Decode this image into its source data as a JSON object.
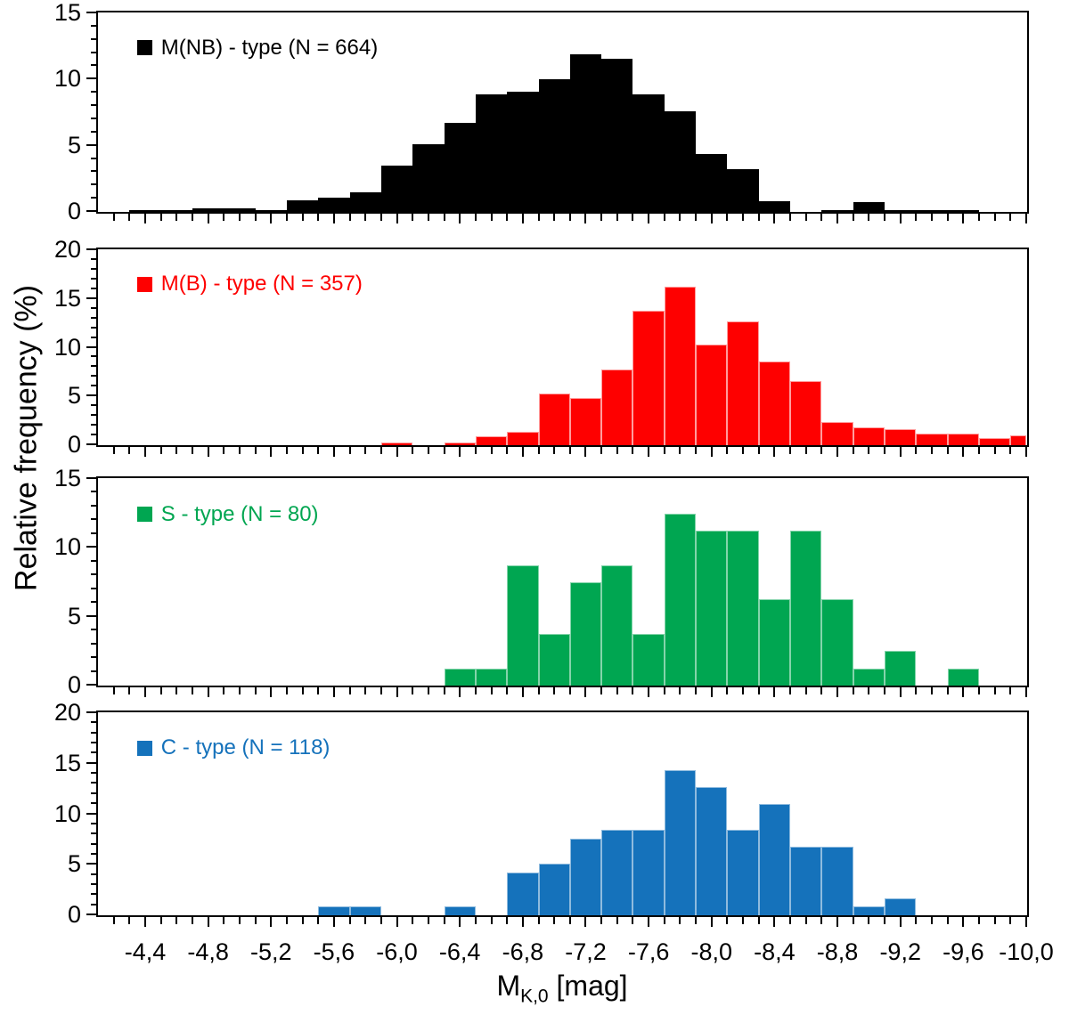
{
  "y_axis": {
    "title": "Relative frequency (%)"
  },
  "x_axis": {
    "title_main": "M",
    "title_sub": "K,0",
    "title_unit": " [mag]",
    "range_abs": [
      4.1,
      10.0
    ],
    "minor_tick_step": 0.1,
    "label_step": 0.4,
    "tick_labels": [
      "-4,4",
      "-4,8",
      "-5,2",
      "-5,6",
      "-6,0",
      "-6,4",
      "-6,8",
      "-7,2",
      "-7,6",
      "-8,0",
      "-8,4",
      "-8,8",
      "-9,2",
      "-9,6",
      "-10,0"
    ],
    "decimal_separator": ","
  },
  "chart_data": [
    {
      "type": "bar",
      "legend": "M(NB) - type (N = 664)",
      "sample_size": 664,
      "color": "#000000",
      "edge_color": "#000000",
      "ylim": [
        0,
        15
      ],
      "yticks": [
        0,
        5,
        10,
        15
      ],
      "ytick_step_minor": 1,
      "xlabel": "M_K,0 [mag]",
      "ylabel": "Relative frequency (%)",
      "bin_width": 0.2,
      "bin_centers": [
        -4.4,
        -4.6,
        -4.8,
        -5.0,
        -5.2,
        -5.4,
        -5.6,
        -5.8,
        -6.0,
        -6.2,
        -6.4,
        -6.6,
        -6.8,
        -7.0,
        -7.2,
        -7.4,
        -7.6,
        -7.8,
        -8.0,
        -8.2,
        -8.4,
        -8.8,
        -9.0,
        -9.2,
        -9.4,
        -9.6
      ],
      "values": [
        0.15,
        0.15,
        0.3,
        0.3,
        0.15,
        0.9,
        1.1,
        1.5,
        3.5,
        5.1,
        6.7,
        8.9,
        9.1,
        10.0,
        11.9,
        11.6,
        8.9,
        7.6,
        4.4,
        3.2,
        0.8,
        0.15,
        0.75,
        0.15,
        0.15,
        0.15
      ]
    },
    {
      "type": "bar",
      "legend": "M(B) - type (N = 357)",
      "sample_size": 357,
      "color": "#fe0000",
      "edge_color": "#ff9d9d",
      "ylim": [
        0,
        20
      ],
      "yticks": [
        0,
        5,
        10,
        15,
        20
      ],
      "ytick_step_minor": 1,
      "xlabel": "M_K,0 [mag]",
      "ylabel": "Relative frequency (%)",
      "bin_width": 0.2,
      "bin_centers": [
        -6.0,
        -6.4,
        -6.6,
        -6.8,
        -7.0,
        -7.2,
        -7.4,
        -7.6,
        -7.8,
        -8.0,
        -8.2,
        -8.4,
        -8.6,
        -8.8,
        -9.0,
        -9.2,
        -9.4,
        -9.6,
        -9.8,
        -10.0
      ],
      "values": [
        0.3,
        0.3,
        0.9,
        1.4,
        5.3,
        4.8,
        7.8,
        13.8,
        16.3,
        10.3,
        12.7,
        8.6,
        6.6,
        2.4,
        1.8,
        1.6,
        1.2,
        1.2,
        0.7,
        1.0
      ]
    },
    {
      "type": "bar",
      "legend": "S - type (N = 80)",
      "sample_size": 80,
      "color": "#00a651",
      "edge_color": "#84d4ab",
      "ylim": [
        0,
        15
      ],
      "yticks": [
        0,
        5,
        10,
        15
      ],
      "ytick_step_minor": 1,
      "xlabel": "M_K,0 [mag]",
      "ylabel": "Relative frequency (%)",
      "bin_width": 0.2,
      "bin_centers": [
        -6.4,
        -6.6,
        -6.8,
        -7.0,
        -7.2,
        -7.4,
        -7.6,
        -7.8,
        -8.0,
        -8.2,
        -8.4,
        -8.6,
        -8.8,
        -9.0,
        -9.2,
        -9.6
      ],
      "values": [
        1.25,
        1.25,
        8.75,
        3.75,
        7.5,
        8.75,
        3.75,
        12.5,
        11.25,
        11.25,
        6.25,
        11.25,
        6.25,
        1.25,
        2.5,
        1.25
      ]
    },
    {
      "type": "bar",
      "legend": "C - type (N = 118)",
      "sample_size": 118,
      "color": "#1572bb",
      "edge_color": "#8fbbde",
      "ylim": [
        0,
        20
      ],
      "yticks": [
        0,
        5,
        10,
        15,
        20
      ],
      "ytick_step_minor": 1,
      "xlabel": "M_K,0 [mag]",
      "ylabel": "Relative frequency (%)",
      "bin_width": 0.2,
      "bin_centers": [
        -5.6,
        -5.8,
        -6.4,
        -6.8,
        -7.0,
        -7.2,
        -7.4,
        -7.6,
        -7.8,
        -8.0,
        -8.2,
        -8.4,
        -8.6,
        -8.8,
        -9.0,
        -9.2
      ],
      "values": [
        0.85,
        0.85,
        0.85,
        4.2,
        5.1,
        7.6,
        8.5,
        8.5,
        14.4,
        12.7,
        8.5,
        11.0,
        6.8,
        6.8,
        0.85,
        1.7
      ]
    }
  ]
}
